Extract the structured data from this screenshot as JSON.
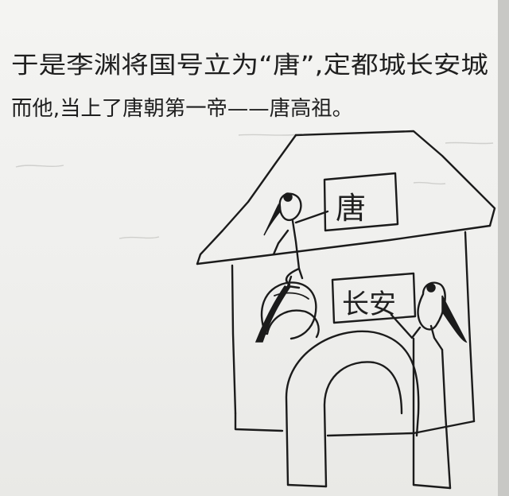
{
  "note": {
    "line1": "于是李渊将国号立为“唐”,定都城长安城",
    "line2": "而他,当上了唐朝第一帝——唐高祖。"
  },
  "palace": {
    "roof_sign": "唐",
    "gate_sign": "长安"
  }
}
